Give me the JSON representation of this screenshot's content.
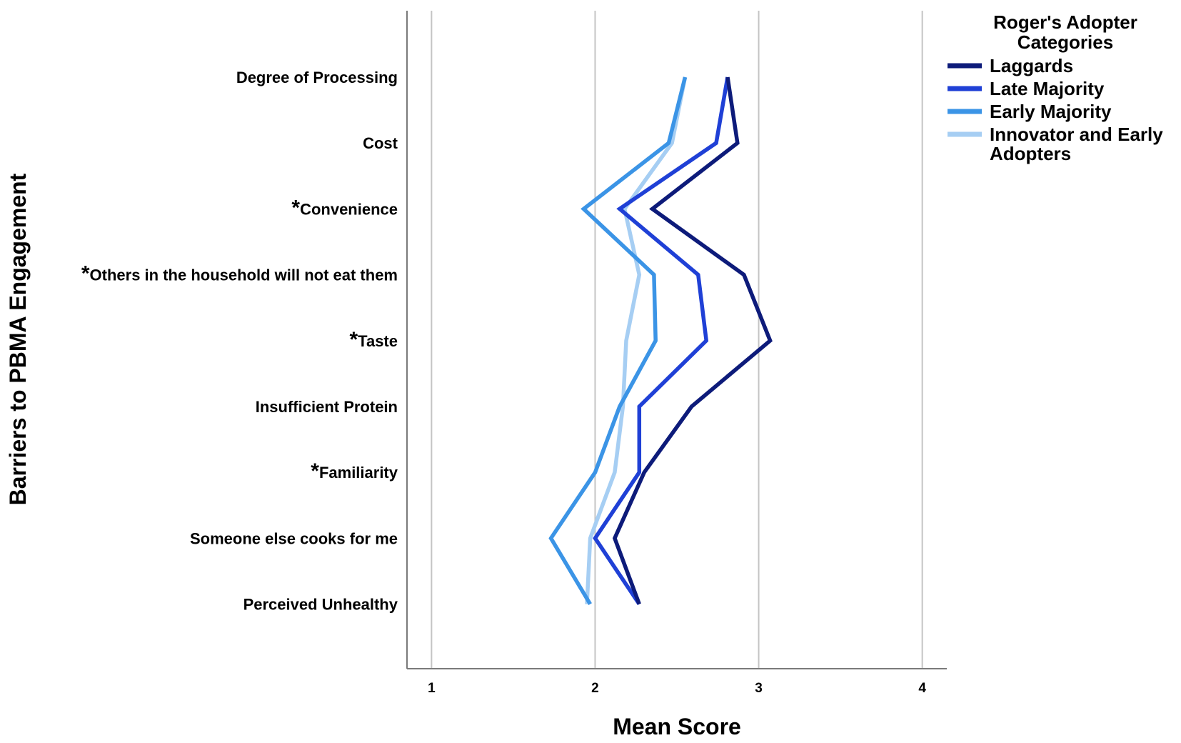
{
  "chart_data": {
    "type": "line",
    "orientation": "horizontal",
    "xlabel": "Mean Score",
    "ylabel": "Barriers to PBMA Engagement",
    "xlim": [
      0.85,
      4.15
    ],
    "xticks": [
      "1",
      "2",
      "3",
      "4"
    ],
    "grid": "vertical",
    "legend_position": "top-right",
    "legend_title": "Roger's Adopter Categories",
    "categories": [
      {
        "mark": "",
        "label": "Degree of Processing"
      },
      {
        "mark": "",
        "label": "Cost"
      },
      {
        "mark": "*",
        "label": "Convenience"
      },
      {
        "mark": "*",
        "label": "Others in the household will not eat them"
      },
      {
        "mark": "*",
        "label": "Taste"
      },
      {
        "mark": "",
        "label": "Insufficient Protein"
      },
      {
        "mark": "*",
        "label": "Familiarity"
      },
      {
        "mark": "",
        "label": "Someone else cooks for me"
      },
      {
        "mark": "",
        "label": "Perceived Unhealthy"
      }
    ],
    "series": [
      {
        "name": "Laggards",
        "color": "#0d1b7a",
        "values": [
          2.81,
          2.87,
          2.35,
          2.91,
          3.07,
          2.59,
          2.3,
          2.12,
          2.27
        ]
      },
      {
        "name": "Late Majority",
        "color": "#1f40d6",
        "values": [
          2.81,
          2.74,
          2.15,
          2.63,
          2.68,
          2.27,
          2.27,
          2.0,
          2.27
        ]
      },
      {
        "name": "Early Majority",
        "color": "#3b94e6",
        "values": [
          2.55,
          2.45,
          1.93,
          2.36,
          2.37,
          2.15,
          2.0,
          1.73,
          1.97
        ]
      },
      {
        "name": "Innovator and Early Adopters",
        "color": "#a6cef3",
        "values": [
          2.55,
          2.47,
          2.18,
          2.27,
          2.19,
          2.17,
          2.12,
          1.97,
          1.95
        ]
      }
    ]
  }
}
